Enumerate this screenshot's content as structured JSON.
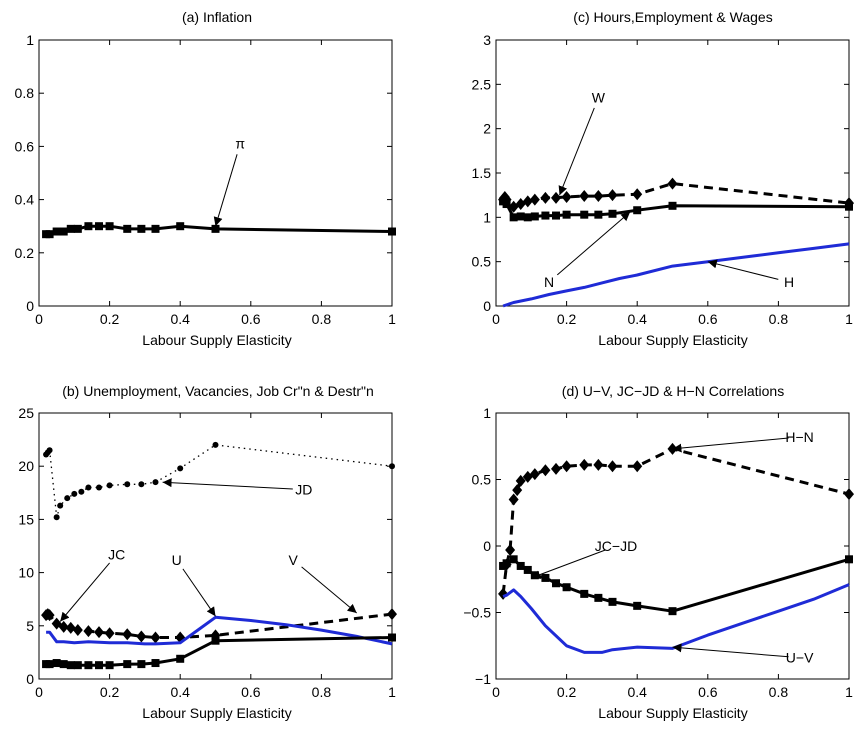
{
  "chart_data": [
    {
      "id": "a",
      "type": "line",
      "title": "(a) Inflation",
      "xlabel": "Labour Supply Elasticity",
      "ylabel": "",
      "xlim": [
        0,
        1
      ],
      "ylim": [
        0,
        1
      ],
      "xticks": [
        0,
        0.2,
        0.4,
        0.6,
        0.8,
        1
      ],
      "xtick_labels": [
        "0",
        "0.2",
        "0.4",
        "0.6",
        "0.8",
        "1"
      ],
      "yticks": [
        0,
        0.2,
        0.4,
        0.6,
        0.8,
        1
      ],
      "ytick_labels": [
        "0",
        "0.2",
        "0.4",
        "0.6",
        "0.8",
        "1"
      ],
      "grid": false,
      "series": [
        {
          "name": "π",
          "color": "#000000",
          "style": "solid",
          "marker": "square",
          "x": [
            0.02,
            0.03,
            0.05,
            0.07,
            0.09,
            0.11,
            0.14,
            0.17,
            0.2,
            0.25,
            0.29,
            0.33,
            0.4,
            0.5,
            1.0
          ],
          "y": [
            0.27,
            0.27,
            0.28,
            0.28,
            0.29,
            0.29,
            0.3,
            0.3,
            0.3,
            0.29,
            0.29,
            0.29,
            0.3,
            0.29,
            0.28
          ]
        }
      ],
      "annotations": [
        {
          "text": "π",
          "x": 0.57,
          "y": 0.61,
          "ax": 0.5,
          "ay": 0.3
        }
      ]
    },
    {
      "id": "c",
      "type": "line",
      "title": "(c) Hours,Employment & Wages",
      "xlabel": "Labour Supply Elasticity",
      "ylabel": "",
      "xlim": [
        0,
        1
      ],
      "ylim": [
        0,
        3
      ],
      "xticks": [
        0,
        0.2,
        0.4,
        0.6,
        0.8,
        1
      ],
      "xtick_labels": [
        "0",
        "0.2",
        "0.4",
        "0.6",
        "0.8",
        "1"
      ],
      "yticks": [
        0,
        0.5,
        1,
        1.5,
        2,
        2.5,
        3
      ],
      "ytick_labels": [
        "0",
        "0.5",
        "1",
        "1.5",
        "2",
        "2.5",
        "3"
      ],
      "grid": false,
      "series": [
        {
          "name": "W",
          "color": "#000000",
          "style": "dashed",
          "marker": "diamond",
          "x": [
            0.02,
            0.025,
            0.03,
            0.05,
            0.07,
            0.09,
            0.11,
            0.14,
            0.17,
            0.2,
            0.25,
            0.29,
            0.33,
            0.4,
            0.5,
            1.0
          ],
          "y": [
            1.2,
            1.23,
            1.2,
            1.12,
            1.15,
            1.18,
            1.2,
            1.22,
            1.22,
            1.23,
            1.24,
            1.24,
            1.25,
            1.26,
            1.38,
            1.16
          ]
        },
        {
          "name": "N",
          "color": "#000000",
          "style": "solid",
          "marker": "square",
          "x": [
            0.02,
            0.03,
            0.05,
            0.07,
            0.09,
            0.11,
            0.14,
            0.17,
            0.2,
            0.25,
            0.29,
            0.33,
            0.4,
            0.5,
            1.0
          ],
          "y": [
            1.18,
            1.15,
            1.0,
            1.01,
            1.0,
            1.01,
            1.02,
            1.02,
            1.03,
            1.03,
            1.03,
            1.04,
            1.08,
            1.13,
            1.12
          ]
        },
        {
          "name": "H",
          "color": "#1f2bd6",
          "style": "solid",
          "marker": "none",
          "x": [
            0.02,
            0.05,
            0.1,
            0.15,
            0.2,
            0.25,
            0.3,
            0.35,
            0.4,
            0.5,
            0.6,
            0.7,
            0.8,
            0.9,
            1.0
          ],
          "y": [
            0.0,
            0.04,
            0.08,
            0.13,
            0.17,
            0.21,
            0.26,
            0.31,
            0.35,
            0.45,
            0.5,
            0.55,
            0.6,
            0.65,
            0.7
          ]
        }
      ],
      "annotations": [
        {
          "text": "W",
          "x": 0.29,
          "y": 2.35,
          "ax": 0.18,
          "ay": 1.25
        },
        {
          "text": "N",
          "x": 0.15,
          "y": 0.27,
          "ax": 0.38,
          "ay": 1.06
        },
        {
          "text": "H",
          "x": 0.83,
          "y": 0.27,
          "ax": 0.6,
          "ay": 0.5
        }
      ]
    },
    {
      "id": "b",
      "type": "line",
      "title": "(b) Unemployment, Vacancies, Job Cr\"n & Destr\"n",
      "xlabel": "Labour Supply Elasticity",
      "ylabel": "",
      "xlim": [
        0,
        1
      ],
      "ylim": [
        0,
        25
      ],
      "xticks": [
        0,
        0.2,
        0.4,
        0.6,
        0.8,
        1
      ],
      "xtick_labels": [
        "0",
        "0.2",
        "0.4",
        "0.6",
        "0.8",
        "1"
      ],
      "yticks": [
        0,
        5,
        10,
        15,
        20,
        25
      ],
      "ytick_labels": [
        "0",
        "5",
        "10",
        "15",
        "20",
        "25"
      ],
      "grid": false,
      "series": [
        {
          "name": "JD",
          "color": "#000000",
          "style": "dotted",
          "marker": "dot",
          "x": [
            0.02,
            0.025,
            0.03,
            0.05,
            0.06,
            0.08,
            0.1,
            0.12,
            0.14,
            0.17,
            0.2,
            0.25,
            0.29,
            0.33,
            0.4,
            0.5,
            1.0
          ],
          "y": [
            21.1,
            21.3,
            21.5,
            15.2,
            16.3,
            17.0,
            17.4,
            17.6,
            18.0,
            18.0,
            18.2,
            18.3,
            18.3,
            18.5,
            19.8,
            22.0,
            20.0
          ]
        },
        {
          "name": "JC",
          "color": "#000000",
          "style": "dashed",
          "marker": "diamond",
          "x": [
            0.02,
            0.025,
            0.03,
            0.05,
            0.07,
            0.09,
            0.11,
            0.14,
            0.17,
            0.2,
            0.25,
            0.29,
            0.33,
            0.4,
            0.5,
            1.0
          ],
          "y": [
            6.0,
            6.1,
            6.0,
            5.2,
            4.9,
            4.8,
            4.6,
            4.5,
            4.4,
            4.3,
            4.2,
            4.0,
            3.9,
            3.9,
            4.1,
            6.1
          ]
        },
        {
          "name": "U",
          "color": "#1f2bd6",
          "style": "solid",
          "marker": "none",
          "x": [
            0.02,
            0.03,
            0.05,
            0.07,
            0.1,
            0.14,
            0.2,
            0.25,
            0.3,
            0.33,
            0.4,
            0.45,
            0.5,
            0.6,
            0.7,
            0.8,
            0.9,
            1.0
          ],
          "y": [
            4.4,
            4.4,
            3.5,
            3.5,
            3.4,
            3.5,
            3.4,
            3.4,
            3.3,
            3.3,
            3.4,
            4.6,
            5.8,
            5.5,
            5.1,
            4.6,
            4.0,
            3.3
          ]
        },
        {
          "name": "V",
          "color": "#000000",
          "style": "solid",
          "marker": "square",
          "x": [
            0.02,
            0.03,
            0.05,
            0.07,
            0.09,
            0.11,
            0.14,
            0.17,
            0.2,
            0.25,
            0.29,
            0.33,
            0.4,
            0.5,
            1.0
          ],
          "y": [
            1.4,
            1.4,
            1.5,
            1.4,
            1.3,
            1.3,
            1.3,
            1.3,
            1.3,
            1.4,
            1.4,
            1.5,
            1.9,
            3.6,
            3.9
          ]
        }
      ],
      "annotations": [
        {
          "text": "JD",
          "x": 0.75,
          "y": 17.8,
          "ax": 0.35,
          "ay": 18.5
        },
        {
          "text": "JC",
          "x": 0.22,
          "y": 11.7,
          "ax": 0.06,
          "ay": 5.4
        },
        {
          "text": "U",
          "x": 0.39,
          "y": 11.2,
          "ax": 0.5,
          "ay": 5.9
        },
        {
          "text": "V",
          "x": 0.72,
          "y": 11.2,
          "ax": 0.9,
          "ay": 6.2
        }
      ]
    },
    {
      "id": "d",
      "type": "line",
      "title": "(d) U−V, JC−JD & H−N Correlations",
      "xlabel": "Labour Supply Elasticity",
      "ylabel": "",
      "xlim": [
        0,
        1
      ],
      "ylim": [
        -1,
        1
      ],
      "xticks": [
        0,
        0.2,
        0.4,
        0.6,
        0.8,
        1
      ],
      "xtick_labels": [
        "0",
        "0.2",
        "0.4",
        "0.6",
        "0.8",
        "1"
      ],
      "yticks": [
        -1,
        -0.5,
        0,
        0.5,
        1
      ],
      "ytick_labels": [
        "−1",
        "−0.5",
        "0",
        "0.5",
        "1"
      ],
      "grid": false,
      "series": [
        {
          "name": "H−N",
          "color": "#000000",
          "style": "dashed",
          "marker": "diamond",
          "x": [
            0.02,
            0.03,
            0.04,
            0.05,
            0.06,
            0.07,
            0.09,
            0.11,
            0.14,
            0.17,
            0.2,
            0.25,
            0.29,
            0.33,
            0.4,
            0.5,
            1.0
          ],
          "y": [
            -0.36,
            -0.14,
            -0.03,
            0.35,
            0.42,
            0.49,
            0.52,
            0.54,
            0.57,
            0.58,
            0.6,
            0.61,
            0.61,
            0.6,
            0.6,
            0.73,
            0.39
          ]
        },
        {
          "name": "JC−JD",
          "color": "#000000",
          "style": "solid",
          "marker": "square",
          "x": [
            0.02,
            0.03,
            0.05,
            0.07,
            0.09,
            0.11,
            0.14,
            0.17,
            0.2,
            0.25,
            0.29,
            0.33,
            0.4,
            0.5,
            1.0
          ],
          "y": [
            -0.15,
            -0.13,
            -0.1,
            -0.15,
            -0.18,
            -0.22,
            -0.24,
            -0.28,
            -0.31,
            -0.36,
            -0.39,
            -0.42,
            -0.45,
            -0.49,
            -0.1
          ]
        },
        {
          "name": "U−V",
          "color": "#1f2bd6",
          "style": "solid",
          "marker": "none",
          "x": [
            0.02,
            0.03,
            0.05,
            0.07,
            0.1,
            0.14,
            0.2,
            0.25,
            0.3,
            0.33,
            0.4,
            0.5,
            0.6,
            0.7,
            0.8,
            0.9,
            1.0
          ],
          "y": [
            -0.38,
            -0.37,
            -0.33,
            -0.38,
            -0.47,
            -0.6,
            -0.75,
            -0.8,
            -0.8,
            -0.78,
            -0.76,
            -0.77,
            -0.67,
            -0.58,
            -0.49,
            -0.4,
            -0.29
          ]
        }
      ],
      "annotations": [
        {
          "text": "H−N",
          "x": 0.86,
          "y": 0.82,
          "ax": 0.5,
          "ay": 0.73
        },
        {
          "text": "JC−JD",
          "x": 0.34,
          "y": 0.0,
          "ax": 0.1,
          "ay": -0.24
        },
        {
          "text": "U−V",
          "x": 0.86,
          "y": -0.84,
          "ax": 0.5,
          "ay": -0.76
        }
      ]
    }
  ]
}
